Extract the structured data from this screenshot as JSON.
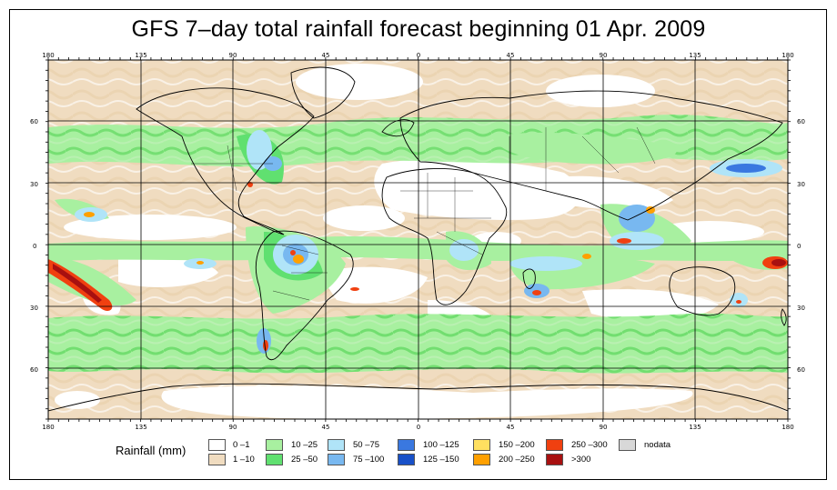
{
  "title": "GFS 7–day total rainfall forecast beginning 01 Apr. 2009",
  "longitude_ticks": [
    "180",
    "135",
    "90",
    "45",
    "0",
    "45",
    "90",
    "135",
    "180"
  ],
  "latitude_ticks": [
    "60",
    "30",
    "0",
    "30",
    "60"
  ],
  "legend": {
    "title": "Rainfall (mm)",
    "items": [
      {
        "label": "0 –1",
        "color": "#ffffff"
      },
      {
        "label": "1 –10",
        "color": "#f0dcc0"
      },
      {
        "label": "10 –25",
        "color": "#a8f0a0"
      },
      {
        "label": "25 –50",
        "color": "#60e070"
      },
      {
        "label": "50 –75",
        "color": "#b0e4f8"
      },
      {
        "label": "75 –100",
        "color": "#78b8f0"
      },
      {
        "label": "100 –125",
        "color": "#3a78e0"
      },
      {
        "label": "125 –150",
        "color": "#1850c8"
      },
      {
        "label": "150 –200",
        "color": "#ffe060"
      },
      {
        "label": "200 –250",
        "color": "#ffa000"
      },
      {
        "label": "250 –300",
        "color": "#f04010"
      },
      {
        "label": ">300",
        "color": "#a81010"
      },
      {
        "label": "nodata",
        "color": "#d8d8d8"
      }
    ]
  }
}
